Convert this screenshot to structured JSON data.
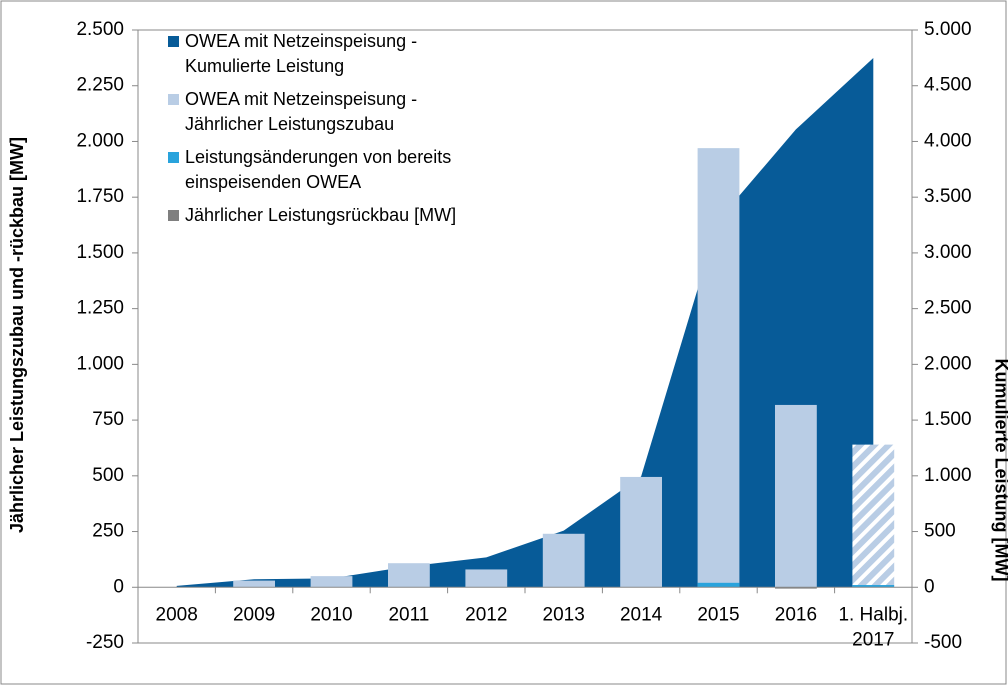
{
  "chart_data": {
    "type": "bar-area",
    "categories": [
      "2008",
      "2009",
      "2010",
      "2011",
      "2012",
      "2013",
      "2014",
      "2015",
      "2016",
      "1. Halbj.\n2017"
    ],
    "y_label": "Jährlicher Leistungszubau und -rückbau [MW]",
    "y2_label": "Kumulierte Leistung [MW]",
    "ylim": [
      -250,
      2500
    ],
    "yticks": [
      {
        "value": -250,
        "label": "-250"
      },
      0,
      250,
      500,
      750,
      {
        "value": 1000,
        "label": "1.000"
      },
      {
        "value": 1250,
        "label": "1.250"
      },
      {
        "value": 1500,
        "label": "1.500"
      },
      {
        "value": 1750,
        "label": "1.750"
      },
      {
        "value": 2000,
        "label": "2.000"
      },
      {
        "value": 2250,
        "label": "2.250"
      },
      {
        "value": 2500,
        "label": "2.500"
      }
    ],
    "y2lim": [
      -500,
      5000
    ],
    "y2ticks": [
      -500,
      0,
      500,
      {
        "value": 1000,
        "label": "1.000"
      },
      {
        "value": 1500,
        "label": "1.500"
      },
      {
        "value": 2000,
        "label": "2.000"
      },
      {
        "value": 2500,
        "label": "2.500"
      },
      {
        "value": 3000,
        "label": "3.000"
      },
      {
        "value": 3500,
        "label": "3.500"
      },
      {
        "value": 4000,
        "label": "4.000"
      },
      {
        "value": 4500,
        "label": "4.500"
      },
      {
        "value": 5000,
        "label": "5.000"
      }
    ],
    "legend": "upper left",
    "series": [
      {
        "name": "OWEA mit Netzeinspeisung -\nKumulierte Leistung",
        "kind": "area",
        "axis": "y2",
        "color": "#075b98",
        "values": [
          12,
          72,
          80,
          188,
          268,
          508,
          994,
          3295,
          4108,
          4749
        ]
      },
      {
        "name": "OWEA mit Netzeinspeisung -\nJährlicher Leistungszubau",
        "kind": "bar",
        "color": "#b9cde5",
        "hatched": [
          9
        ],
        "values": [
          0,
          30,
          50,
          108,
          80,
          240,
          495,
          1970,
          818,
          640
        ]
      },
      {
        "name": "Leistungsänderungen von bereits\neinspeisenden OWEA",
        "kind": "bar",
        "color": "#29a3dc",
        "values": [
          0,
          0,
          0,
          0,
          0,
          0,
          0,
          20,
          0,
          10
        ]
      },
      {
        "name": "Jährlicher Leistungsrückbau [MW]",
        "kind": "bar",
        "color": "#7f7f7f",
        "values": [
          0,
          0,
          0,
          0,
          0,
          0,
          0,
          0,
          -6,
          0
        ]
      }
    ]
  }
}
